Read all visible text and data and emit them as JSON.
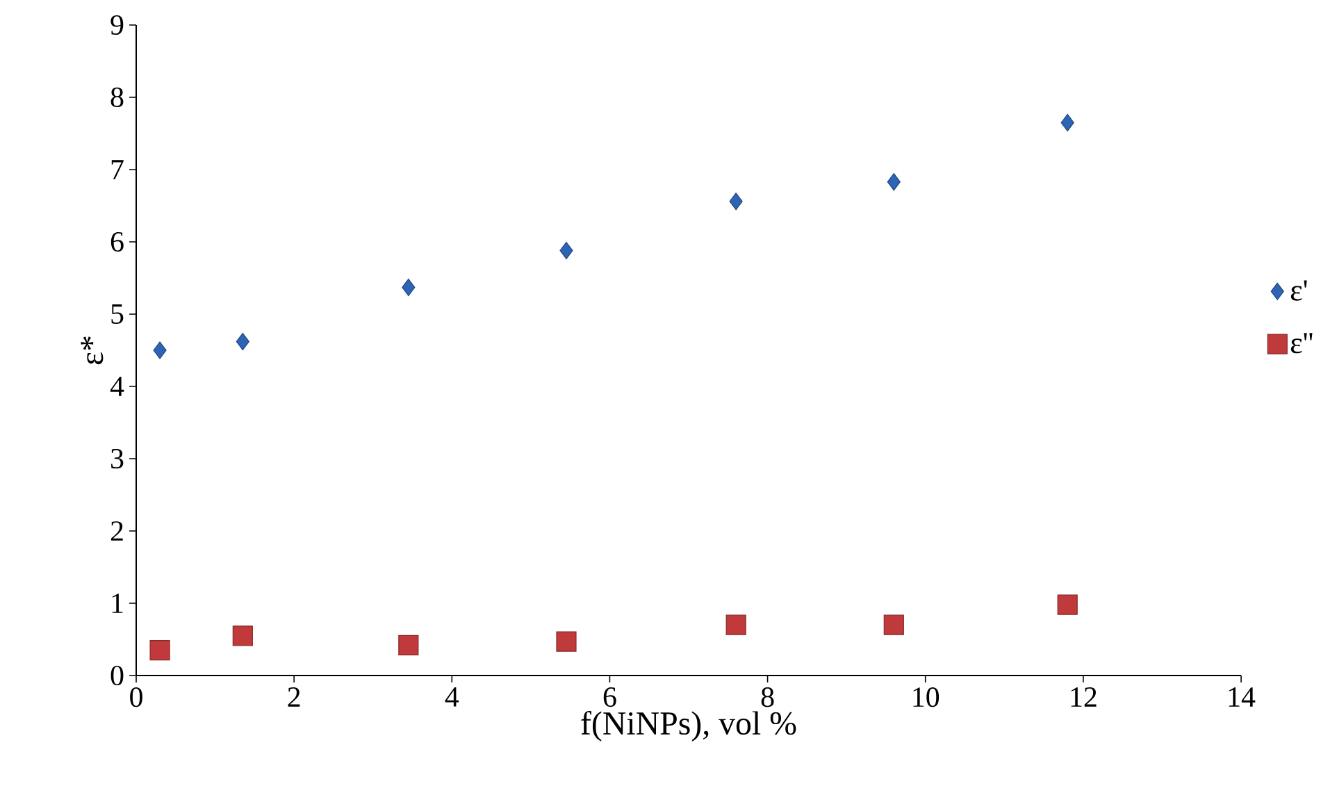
{
  "chart_data": {
    "type": "scatter",
    "xlabel": "f(NiNPs), vol %",
    "ylabel": "ε*",
    "xlim": [
      0,
      14
    ],
    "ylim": [
      0,
      9
    ],
    "xticks": [
      0,
      2,
      4,
      6,
      8,
      10,
      12,
      14
    ],
    "yticks": [
      0,
      1,
      2,
      3,
      4,
      5,
      6,
      7,
      8,
      9
    ],
    "grid": false,
    "legend": "right",
    "series": [
      {
        "name": "ε'",
        "color": "#2e64b5",
        "marker": "diamond",
        "x": [
          0.3,
          1.35,
          3.45,
          5.45,
          7.6,
          9.6,
          11.8
        ],
        "values": [
          4.5,
          4.62,
          5.37,
          5.88,
          6.56,
          6.83,
          7.65
        ]
      },
      {
        "name": "ε''",
        "color": "#c0393b",
        "marker": "square",
        "x": [
          0.3,
          1.35,
          3.45,
          5.45,
          7.6,
          9.6,
          11.8
        ],
        "values": [
          0.35,
          0.55,
          0.42,
          0.47,
          0.7,
          0.7,
          0.98
        ]
      }
    ]
  }
}
